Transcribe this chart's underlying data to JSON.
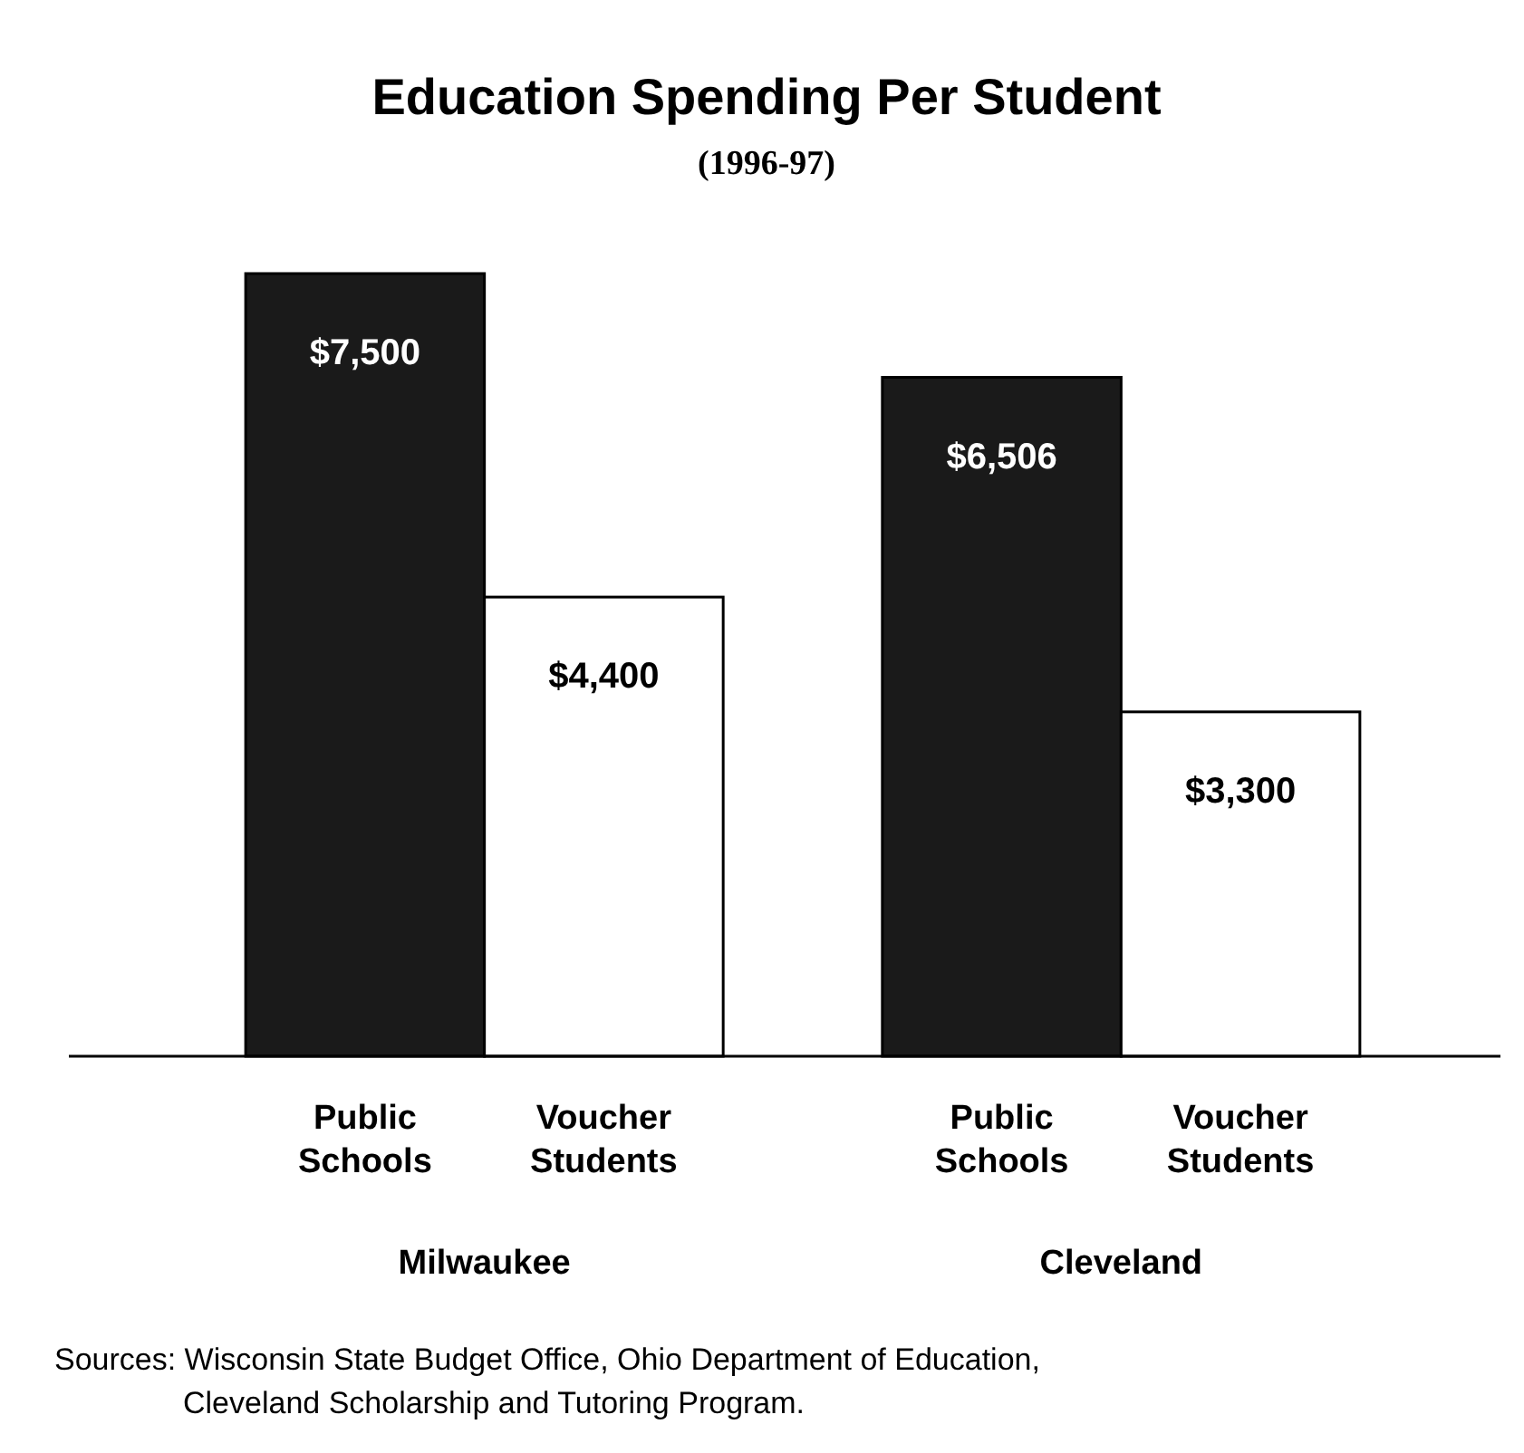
{
  "chart_data": {
    "type": "bar",
    "title": "Education Spending Per Student",
    "subtitle": "(1996-97)",
    "categories": [
      "Milwaukee",
      "Cleveland"
    ],
    "series": [
      {
        "name": "Public Schools",
        "color": "#1a1a1a",
        "values": [
          7500,
          6506
        ],
        "value_labels": [
          "$7,500",
          "$6,506"
        ]
      },
      {
        "name": "Voucher Students",
        "color": "#ffffff",
        "values": [
          4400,
          3300
        ],
        "value_labels": [
          "$4,400",
          "$3,300"
        ]
      }
    ],
    "annotations": [
      "Sources: Wisconsin State Budget Office, Ohio Department of Education, Cleveland Scholarship and Tutoring Program."
    ]
  }
}
